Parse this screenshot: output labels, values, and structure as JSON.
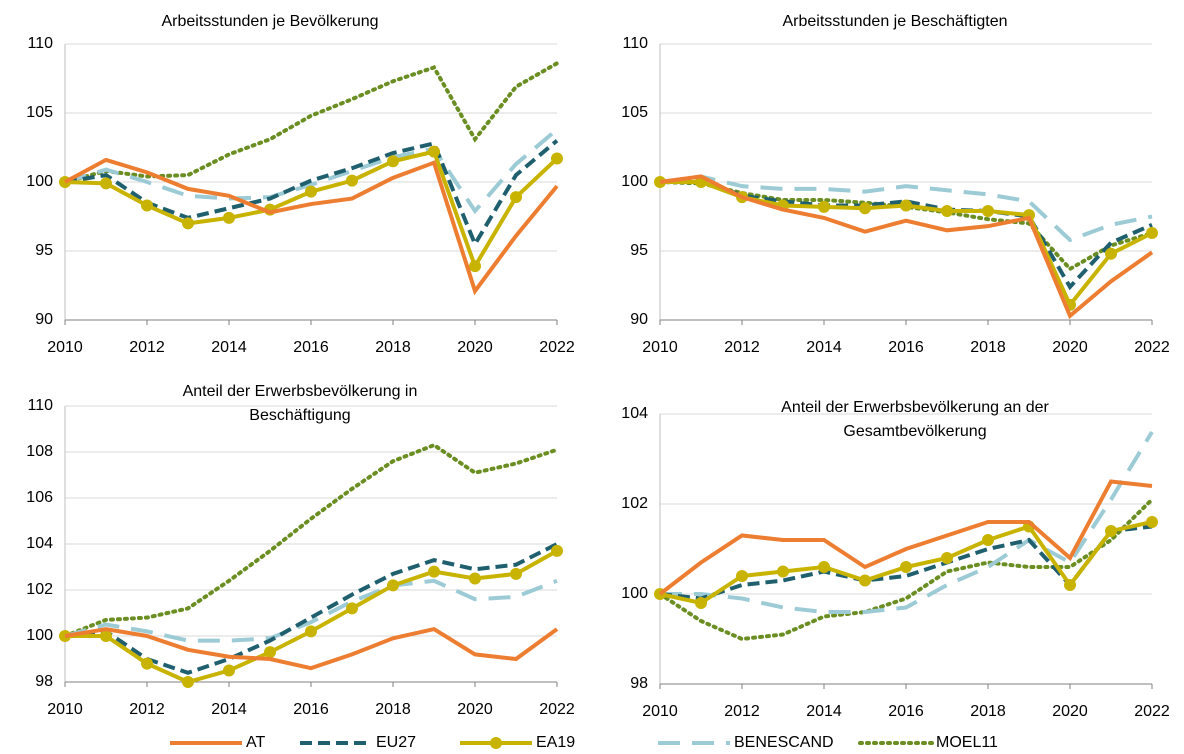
{
  "chart_data": [
    {
      "type": "line",
      "title": "Arbeitsstunden je Bevölkerung",
      "x": [
        2010,
        2011,
        2012,
        2013,
        2014,
        2015,
        2016,
        2017,
        2018,
        2019,
        2020,
        2021,
        2022
      ],
      "xlim": [
        2010,
        2022
      ],
      "xticks": [
        2010,
        2012,
        2014,
        2016,
        2018,
        2020,
        2022
      ],
      "ylim": [
        90,
        110
      ],
      "yticks": [
        90,
        95,
        100,
        105,
        110
      ],
      "grid": true,
      "series": [
        {
          "name": "AT",
          "color": "#ed7d31",
          "line_style": "solid",
          "values": [
            100,
            101.6,
            100.7,
            99.5,
            99.0,
            97.8,
            98.4,
            98.8,
            100.3,
            101.4,
            92.1,
            96.1,
            99.7
          ]
        },
        {
          "name": "EU27",
          "color": "#1f5f6e",
          "line_style": "dashed",
          "values": [
            100,
            100.5,
            98.5,
            97.4,
            98.1,
            98.8,
            100.1,
            101.0,
            102.1,
            102.8,
            95.5,
            100.5,
            103.0
          ]
        },
        {
          "name": "EA19",
          "color": "#c8b400",
          "line_style": "solid",
          "marker": "circle",
          "values": [
            100,
            99.9,
            98.3,
            97.0,
            97.4,
            98.0,
            99.3,
            100.1,
            101.5,
            102.2,
            93.9,
            98.9,
            101.7
          ]
        },
        {
          "name": "BENESCAND",
          "color": "#9ccbd6",
          "line_style": "long-dashed",
          "values": [
            100,
            100.9,
            100.0,
            99.0,
            98.8,
            98.9,
            99.8,
            100.8,
            101.8,
            102.4,
            97.9,
            101.3,
            103.8
          ]
        },
        {
          "name": "MOEL11",
          "color": "#6b8e23",
          "line_style": "dotted",
          "values": [
            100,
            100.8,
            100.4,
            100.5,
            102.0,
            103.1,
            104.8,
            106.0,
            107.3,
            108.3,
            103.1,
            106.9,
            108.6
          ]
        }
      ]
    },
    {
      "type": "line",
      "title": "Arbeitsstunden je Beschäftigten",
      "x": [
        2010,
        2011,
        2012,
        2013,
        2014,
        2015,
        2016,
        2017,
        2018,
        2019,
        2020,
        2021,
        2022
      ],
      "xlim": [
        2010,
        2022
      ],
      "xticks": [
        2010,
        2012,
        2014,
        2016,
        2018,
        2020,
        2022
      ],
      "ylim": [
        90,
        110
      ],
      "yticks": [
        90,
        95,
        100,
        105,
        110
      ],
      "grid": true,
      "series": [
        {
          "name": "AT",
          "color": "#ed7d31",
          "line_style": "solid",
          "values": [
            100,
            100.4,
            98.9,
            98.0,
            97.4,
            96.4,
            97.2,
            96.5,
            96.8,
            97.4,
            90.3,
            92.8,
            94.9
          ]
        },
        {
          "name": "EU27",
          "color": "#1f5f6e",
          "line_style": "dashed",
          "values": [
            100,
            100.2,
            99.0,
            98.6,
            98.3,
            98.3,
            98.6,
            98.0,
            97.9,
            97.5,
            92.4,
            95.6,
            96.9
          ]
        },
        {
          "name": "EA19",
          "color": "#c8b400",
          "line_style": "solid",
          "marker": "circle",
          "values": [
            100,
            100.0,
            98.9,
            98.3,
            98.2,
            98.1,
            98.3,
            97.9,
            97.9,
            97.6,
            91.1,
            94.8,
            96.3
          ]
        },
        {
          "name": "BENESCAND",
          "color": "#9ccbd6",
          "line_style": "long-dashed",
          "values": [
            100,
            100.4,
            99.7,
            99.5,
            99.5,
            99.3,
            99.7,
            99.4,
            99.1,
            98.6,
            95.8,
            96.9,
            97.5
          ]
        },
        {
          "name": "MOEL11",
          "color": "#6b8e23",
          "line_style": "dotted",
          "values": [
            100,
            99.9,
            99.2,
            98.7,
            98.7,
            98.5,
            98.2,
            97.8,
            97.3,
            97.0,
            93.7,
            95.4,
            96.3
          ]
        }
      ]
    },
    {
      "type": "line",
      "title": "Anteil der Erwerbsbevölkerung in Beschäftigung",
      "x": [
        2010,
        2011,
        2012,
        2013,
        2014,
        2015,
        2016,
        2017,
        2018,
        2019,
        2020,
        2021,
        2022
      ],
      "xlim": [
        2010,
        2022
      ],
      "xticks": [
        2010,
        2012,
        2014,
        2016,
        2018,
        2020,
        2022
      ],
      "ylim": [
        98,
        110
      ],
      "yticks": [
        98,
        100,
        102,
        104,
        106,
        108,
        110
      ],
      "grid": true,
      "series": [
        {
          "name": "AT",
          "color": "#ed7d31",
          "line_style": "solid",
          "values": [
            100,
            100.3,
            100.0,
            99.4,
            99.1,
            99.0,
            98.6,
            99.2,
            99.9,
            100.3,
            99.2,
            99.0,
            100.3
          ]
        },
        {
          "name": "EU27",
          "color": "#1f5f6e",
          "line_style": "dashed",
          "values": [
            100,
            100.2,
            99.0,
            98.4,
            99.0,
            99.8,
            100.8,
            101.8,
            102.7,
            103.3,
            102.9,
            103.1,
            104.0
          ]
        },
        {
          "name": "EA19",
          "color": "#c8b400",
          "line_style": "solid",
          "marker": "circle",
          "values": [
            100,
            100.0,
            98.8,
            98.0,
            98.5,
            99.3,
            100.2,
            101.2,
            102.2,
            102.8,
            102.5,
            102.7,
            103.7
          ]
        },
        {
          "name": "BENESCAND",
          "color": "#9ccbd6",
          "line_style": "long-dashed",
          "values": [
            100,
            100.5,
            100.2,
            99.8,
            99.8,
            99.9,
            100.6,
            101.5,
            102.2,
            102.4,
            101.6,
            101.7,
            102.4
          ]
        },
        {
          "name": "MOEL11",
          "color": "#6b8e23",
          "line_style": "dotted",
          "values": [
            100,
            100.7,
            100.8,
            101.2,
            102.4,
            103.7,
            105.1,
            106.4,
            107.6,
            108.3,
            107.1,
            107.5,
            108.1
          ]
        }
      ]
    },
    {
      "type": "line",
      "title": "Anteil der Erwerbsbevölkerung an der Gesamtbevölkerung",
      "x": [
        2010,
        2011,
        2012,
        2013,
        2014,
        2015,
        2016,
        2017,
        2018,
        2019,
        2020,
        2021,
        2022
      ],
      "xlim": [
        2010,
        2022
      ],
      "xticks": [
        2010,
        2012,
        2014,
        2016,
        2018,
        2020,
        2022
      ],
      "ylim": [
        98,
        104
      ],
      "yticks": [
        98,
        100,
        102,
        104
      ],
      "grid": true,
      "series": [
        {
          "name": "AT",
          "color": "#ed7d31",
          "line_style": "solid",
          "values": [
            100,
            100.7,
            101.3,
            101.2,
            101.2,
            100.6,
            101.0,
            101.3,
            101.6,
            101.6,
            100.8,
            102.5,
            102.4
          ]
        },
        {
          "name": "EU27",
          "color": "#1f5f6e",
          "line_style": "dashed",
          "values": [
            100,
            99.9,
            100.2,
            100.3,
            100.5,
            100.3,
            100.4,
            100.7,
            101.0,
            101.2,
            100.2,
            101.4,
            101.5
          ]
        },
        {
          "name": "EA19",
          "color": "#c8b400",
          "line_style": "solid",
          "marker": "circle",
          "values": [
            100,
            99.8,
            100.4,
            100.5,
            100.6,
            100.3,
            100.6,
            100.8,
            101.2,
            101.5,
            100.2,
            101.4,
            101.6
          ]
        },
        {
          "name": "BENESCAND",
          "color": "#9ccbd6",
          "line_style": "long-dashed",
          "values": [
            100,
            100.0,
            99.9,
            99.7,
            99.6,
            99.6,
            99.7,
            100.2,
            100.6,
            101.2,
            100.7,
            102.1,
            103.6
          ]
        },
        {
          "name": "MOEL11",
          "color": "#6b8e23",
          "line_style": "dotted",
          "values": [
            100,
            99.4,
            99.0,
            99.1,
            99.5,
            99.6,
            99.9,
            100.5,
            100.7,
            100.6,
            100.6,
            101.2,
            102.1
          ]
        }
      ]
    }
  ]
}
